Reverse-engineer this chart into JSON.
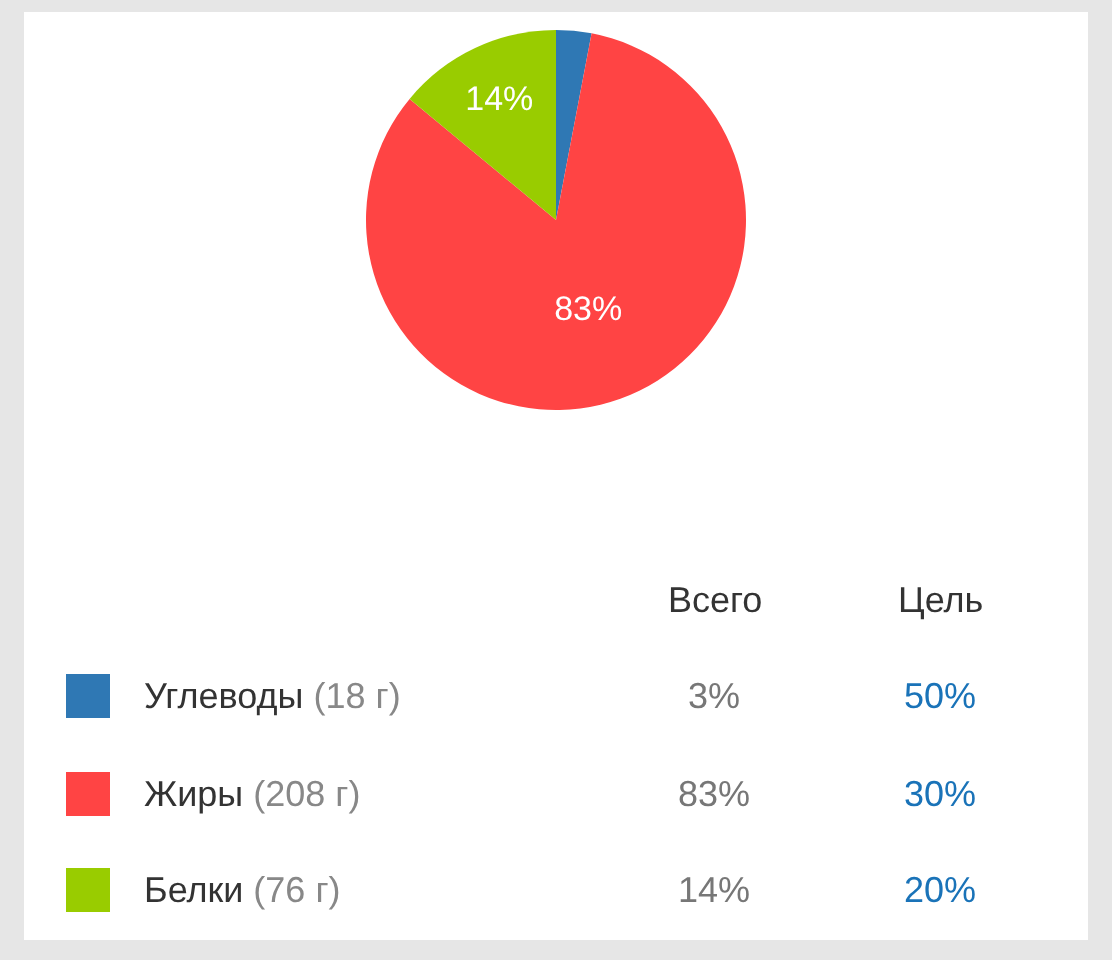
{
  "chart_data": {
    "type": "pie",
    "categories": [
      "Углеводы (18 г)",
      "Жиры (208 г)",
      "Белки (76 г)"
    ],
    "values": [
      3,
      83,
      14
    ],
    "colors": [
      "#2f78b4",
      "#ff4444",
      "#99cc00"
    ],
    "value_labels": [
      "3%",
      "83%",
      "14%"
    ],
    "annotations": [
      "Всего",
      "Цель",
      "50%",
      "30%",
      "20%"
    ],
    "legend": "bottom"
  }
}
